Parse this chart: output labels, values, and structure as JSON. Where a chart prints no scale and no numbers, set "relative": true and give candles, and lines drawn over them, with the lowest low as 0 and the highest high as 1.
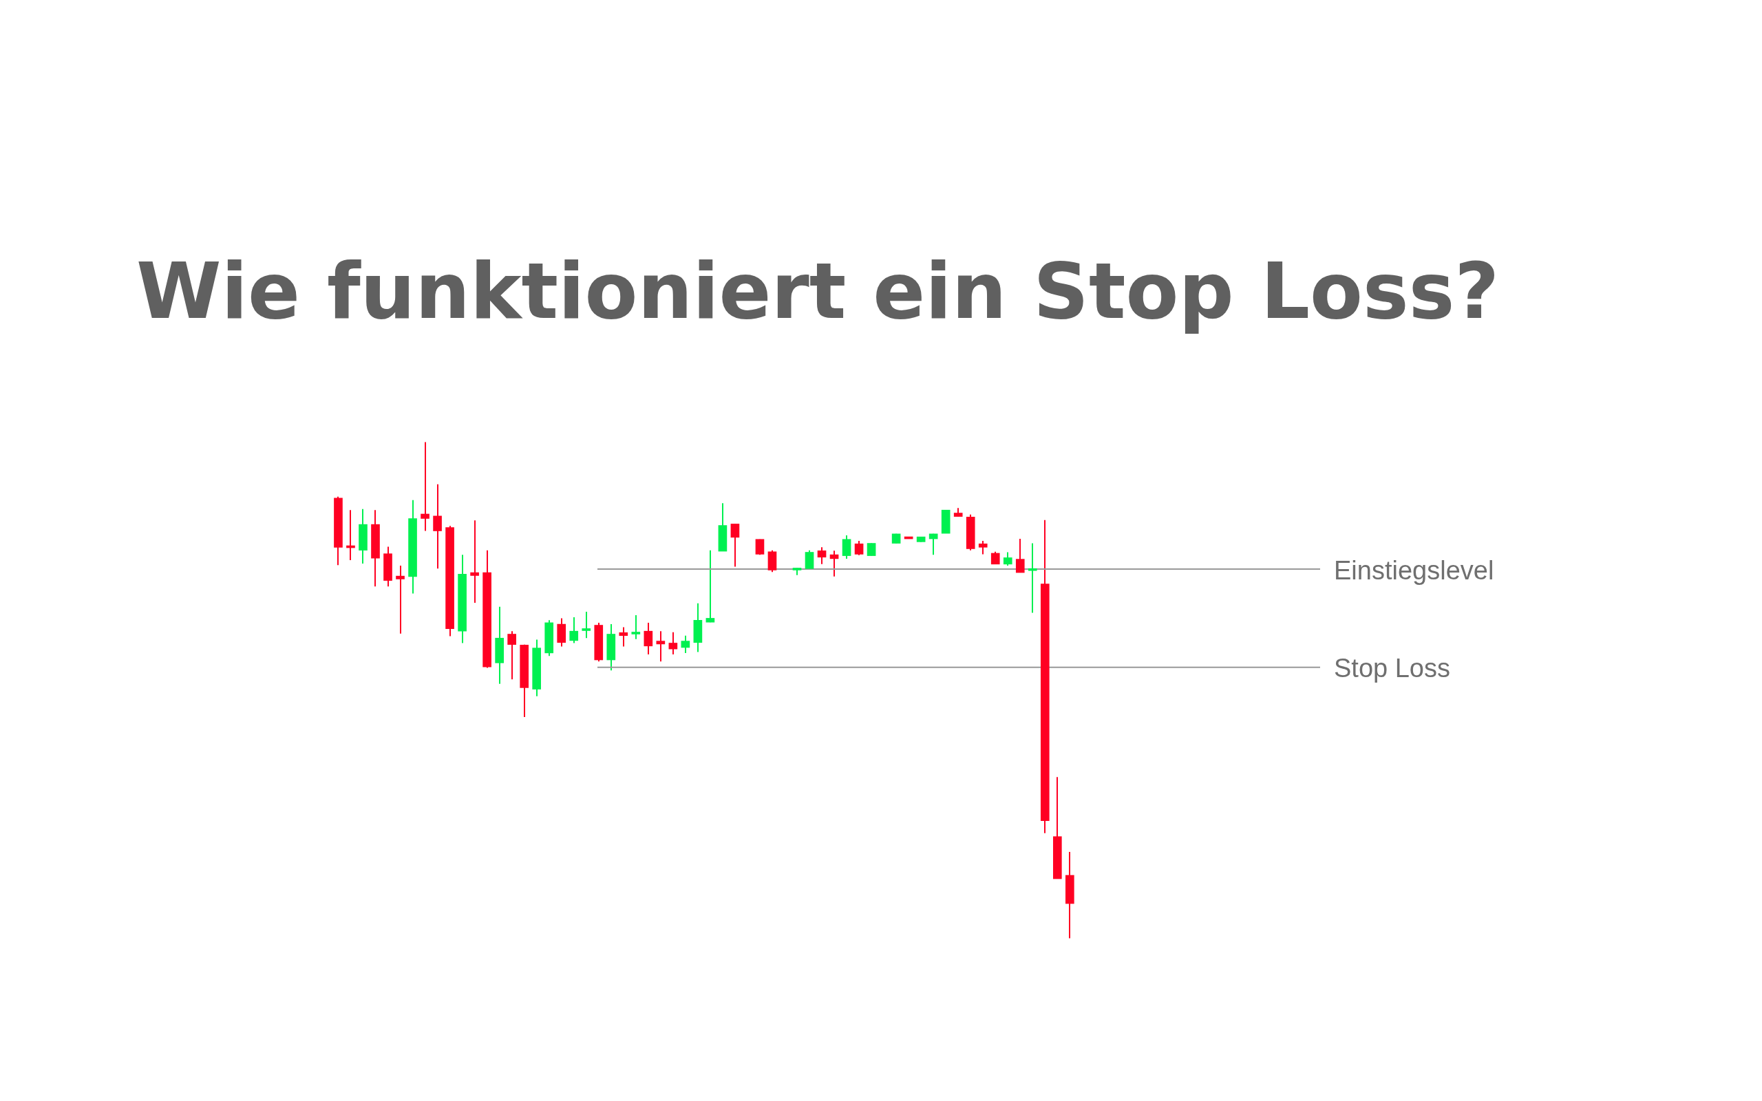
{
  "chart_data": {
    "type": "candlestick",
    "title": "Wie funktioniert ein Stop Loss?",
    "relative": true,
    "categories": [
      null,
      null,
      null,
      null,
      null,
      null,
      null,
      null,
      null,
      null,
      null,
      null,
      null,
      null,
      null,
      null,
      null,
      null,
      null,
      null,
      null,
      null,
      null,
      null,
      null,
      null,
      null,
      null,
      null,
      null,
      null,
      null,
      null,
      null,
      null,
      null,
      null,
      null,
      null,
      null,
      null,
      null,
      null,
      null,
      null,
      null,
      null,
      null,
      null,
      null,
      null,
      null,
      null,
      null,
      null,
      null,
      null,
      null,
      null,
      null
    ],
    "ohlc": [
      [
        0.887,
        0.89,
        0.752,
        0.788
      ],
      [
        0.789,
        0.863,
        0.762,
        0.787
      ],
      [
        0.782,
        0.865,
        0.755,
        0.834
      ],
      [
        0.834,
        0.863,
        0.709,
        0.766
      ],
      [
        0.775,
        0.789,
        0.709,
        0.721
      ],
      [
        0.73,
        0.751,
        0.614,
        0.724
      ],
      [
        0.729,
        0.883,
        0.695,
        0.846
      ],
      [
        0.855,
        1.0,
        0.821,
        0.846
      ],
      [
        0.851,
        0.915,
        0.745,
        0.821
      ],
      [
        0.828,
        0.831,
        0.609,
        0.624
      ],
      [
        0.619,
        0.773,
        0.595,
        0.734
      ],
      [
        0.737,
        0.842,
        0.676,
        0.731
      ],
      [
        0.737,
        0.782,
        0.545,
        0.547
      ],
      [
        0.555,
        0.668,
        0.513,
        0.605
      ],
      [
        0.613,
        0.619,
        0.522,
        0.592
      ],
      [
        0.591,
        0.592,
        0.446,
        0.505
      ],
      [
        0.502,
        0.602,
        0.488,
        0.585
      ],
      [
        0.575,
        0.641,
        0.569,
        0.636
      ],
      [
        0.633,
        0.645,
        0.588,
        0.596
      ],
      [
        0.6,
        0.647,
        0.595,
        0.619
      ],
      [
        0.62,
        0.658,
        0.605,
        0.624
      ],
      [
        0.631,
        0.636,
        0.558,
        0.561
      ],
      [
        0.561,
        0.633,
        0.54,
        0.613
      ],
      [
        0.616,
        0.627,
        0.588,
        0.61
      ],
      [
        0.613,
        0.651,
        0.603,
        0.616
      ],
      [
        0.619,
        0.636,
        0.572,
        0.589
      ],
      [
        0.599,
        0.619,
        0.558,
        0.593
      ],
      [
        0.595,
        0.617,
        0.572,
        0.583
      ],
      [
        0.586,
        0.61,
        0.575,
        0.599
      ],
      [
        0.596,
        0.675,
        0.577,
        0.641
      ],
      [
        0.637,
        0.782,
        0.637,
        0.645
      ],
      [
        0.78,
        0.877,
        0.78,
        0.832
      ],
      [
        0.835,
        0.835,
        0.749,
        0.808
      ],
      null,
      [
        0.804,
        0.804,
        0.773,
        0.774
      ],
      [
        0.779,
        0.782,
        0.738,
        0.742
      ],
      null,
      [
        0.742,
        0.746,
        0.732,
        0.745
      ],
      [
        0.745,
        0.782,
        0.744,
        0.778
      ],
      [
        0.781,
        0.788,
        0.754,
        0.768
      ],
      [
        0.773,
        0.781,
        0.729,
        0.765
      ],
      [
        0.771,
        0.812,
        0.765,
        0.804
      ],
      [
        0.795,
        0.801,
        0.772,
        0.774
      ],
      [
        0.771,
        0.796,
        0.771,
        0.796
      ],
      null,
      [
        0.796,
        0.815,
        0.796,
        0.815
      ],
      [
        0.809,
        0.809,
        0.805,
        0.805
      ],
      [
        0.799,
        0.809,
        0.799,
        0.809
      ],
      [
        0.805,
        0.815,
        0.773,
        0.815
      ],
      [
        0.816,
        0.863,
        0.816,
        0.863
      ],
      [
        0.857,
        0.867,
        0.85,
        0.85
      ],
      [
        0.849,
        0.854,
        0.782,
        0.785
      ],
      [
        0.795,
        0.801,
        0.774,
        0.788
      ],
      [
        0.776,
        0.779,
        0.754,
        0.754
      ],
      [
        0.754,
        0.778,
        0.751,
        0.767
      ],
      [
        0.764,
        0.805,
        0.737,
        0.737
      ],
      [
        0.741,
        0.796,
        0.656,
        0.745
      ],
      [
        0.714,
        0.843,
        0.212,
        0.237
      ],
      [
        0.205,
        0.325,
        0.12,
        0.12
      ],
      [
        0.127,
        0.174,
        0.0,
        0.07
      ]
    ],
    "colors": [
      "#ff0022",
      "#ff0022",
      "#00f050",
      "#ff0022",
      "#ff0022",
      "#ff0022",
      "#00f050",
      "#ff0022",
      "#ff0022",
      "#ff0022",
      "#00f050",
      "#ff0022",
      "#ff0022",
      "#00f050",
      "#ff0022",
      "#ff0022",
      "#00f050",
      "#00f050",
      "#ff0022",
      "#00f050",
      "#00f050",
      "#ff0022",
      "#00f050",
      "#ff0022",
      "#00f050",
      "#ff0022",
      "#ff0022",
      "#ff0022",
      "#00f050",
      "#00f050",
      "#00f050",
      "#00f050",
      "#ff0022",
      null,
      "#ff0022",
      "#ff0022",
      null,
      "#00f050",
      "#00f050",
      "#ff0022",
      "#ff0022",
      "#00f050",
      "#ff0022",
      "#00f050",
      null,
      "#00f050",
      "#ff0022",
      "#00f050",
      "#00f050",
      "#00f050",
      "#ff0022",
      "#ff0022",
      "#ff0022",
      "#ff0022",
      "#00f050",
      "#ff0022",
      "#00f050",
      "#ff0022",
      "#ff0022",
      "#ff0022"
    ],
    "ref_lines": [
      {
        "axis": "y",
        "value": 0.744,
        "label": "Einstiegslevel",
        "color": "#999999"
      },
      {
        "axis": "y",
        "value": 0.546,
        "label": "Stop Loss",
        "color": "#999999"
      }
    ]
  }
}
